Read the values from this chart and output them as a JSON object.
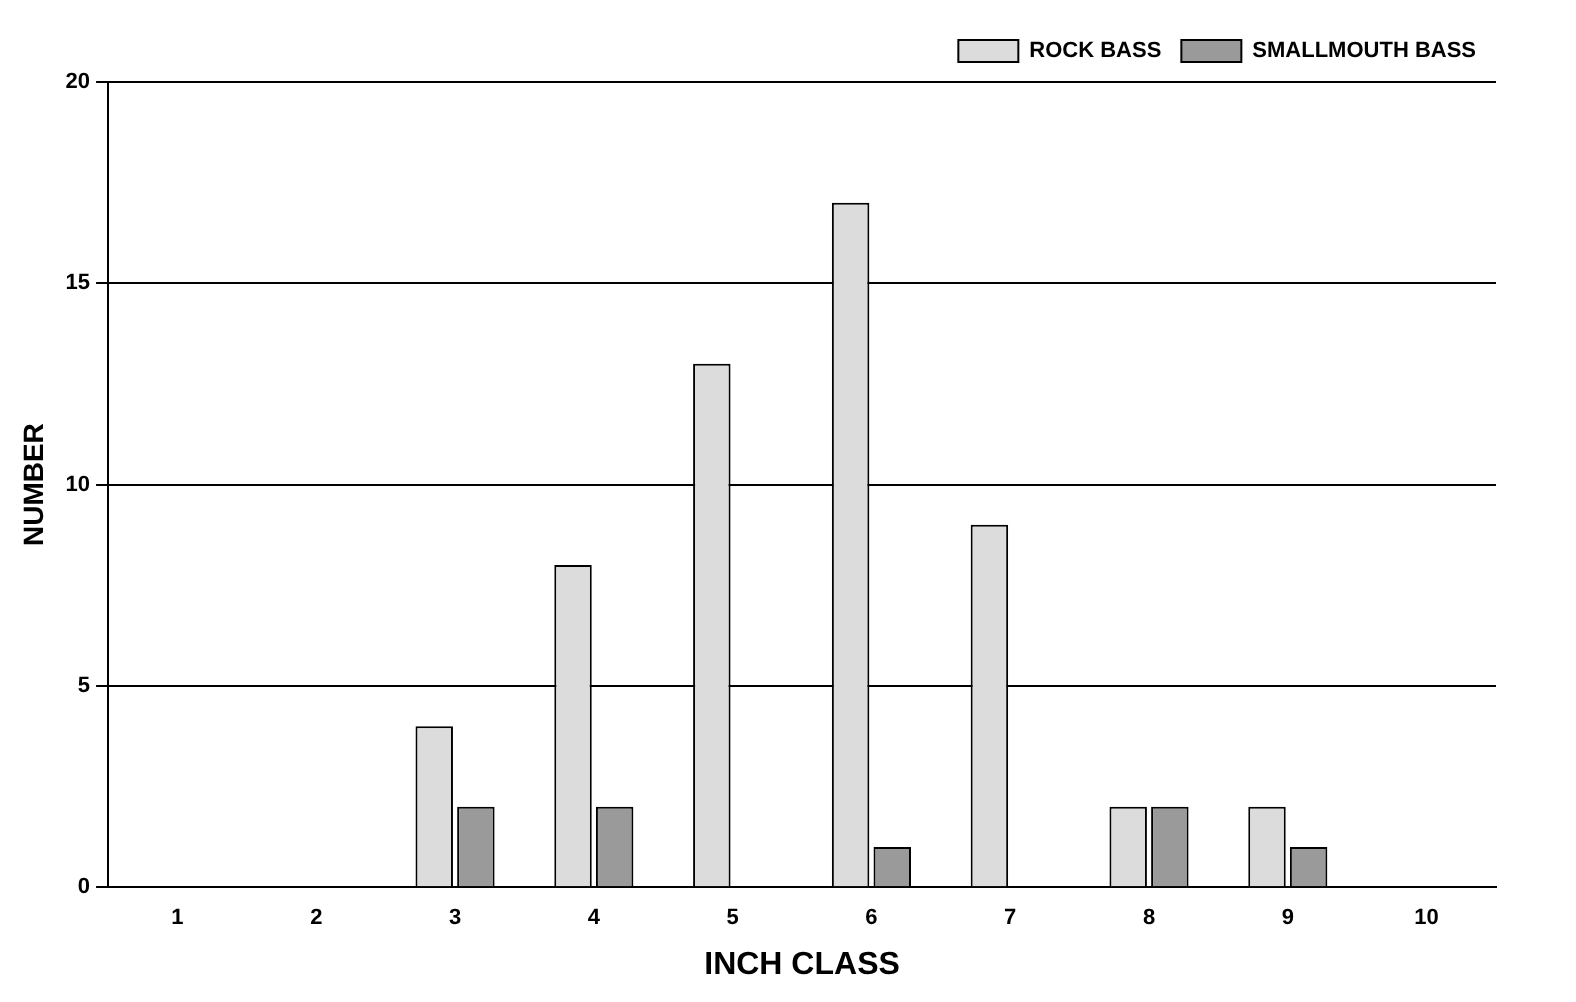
{
  "chart_data": {
    "type": "bar",
    "xlabel": "INCH CLASS",
    "ylabel": "NUMBER",
    "categories": [
      "1",
      "2",
      "3",
      "4",
      "5",
      "6",
      "7",
      "8",
      "9",
      "10"
    ],
    "series": [
      {
        "name": "ROCK BASS",
        "color": "#dcdcdc",
        "values": [
          0,
          0,
          4,
          8,
          13,
          17,
          9,
          2,
          2,
          0
        ]
      },
      {
        "name": "SMALLMOUTH BASS",
        "color": "#9a9a9a",
        "values": [
          0,
          0,
          2,
          2,
          0,
          1,
          0,
          2,
          1,
          0
        ]
      }
    ],
    "ylim": [
      0,
      20
    ],
    "yticks": [
      0,
      5,
      10,
      15,
      20
    ],
    "grid": "y",
    "legend": "top right"
  }
}
